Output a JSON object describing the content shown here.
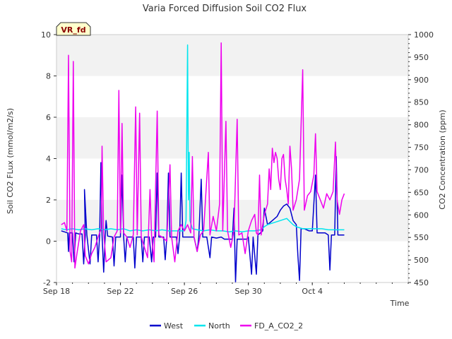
{
  "chart_data": {
    "type": "line",
    "title": "Varia Forced Diffusion Soil CO2 Flux",
    "site_badge": "VR_fd",
    "xlabel": "Time",
    "ylabel_left": "Soil CO2 FLux (mmol/m2/s)",
    "ylabel_right": "CO2 Concentration (ppm)",
    "x_range_days_from_sep18": [
      0,
      22
    ],
    "x_ticks": [
      {
        "label": "Sep 18",
        "day": 0
      },
      {
        "label": "Sep 22",
        "day": 4
      },
      {
        "label": "Sep 26",
        "day": 8
      },
      {
        "label": "Sep 30",
        "day": 12
      },
      {
        "label": "Oct 4",
        "day": 16
      }
    ],
    "ylim_left": [
      -2,
      10
    ],
    "yticks_left": [
      -2,
      0,
      2,
      4,
      6,
      8,
      10
    ],
    "ylim_right": [
      450,
      1000
    ],
    "yticks_right": [
      450,
      500,
      550,
      600,
      650,
      700,
      750,
      800,
      850,
      900,
      950,
      1000
    ],
    "grid": "horizontal bands",
    "legend_position": "bottom-center",
    "series": [
      {
        "name": "West",
        "color": "#0000cc",
        "axis": "left",
        "points": [
          [
            0.3,
            0.5
          ],
          [
            0.5,
            0.45
          ],
          [
            0.7,
            0.4
          ],
          [
            0.75,
            -0.5
          ],
          [
            0.8,
            0.4
          ],
          [
            1.0,
            0.4
          ],
          [
            1.1,
            -1.0
          ],
          [
            1.2,
            0.4
          ],
          [
            1.4,
            0.35
          ],
          [
            1.6,
            0.35
          ],
          [
            1.7,
            -1.1
          ],
          [
            1.8,
            0.3
          ],
          [
            1.75,
            2.5
          ],
          [
            1.9,
            0.3
          ],
          [
            2.1,
            -1.1
          ],
          [
            2.2,
            0.3
          ],
          [
            2.5,
            0.3
          ],
          [
            2.6,
            -1.0
          ],
          [
            2.7,
            0.3
          ],
          [
            2.78,
            3.8
          ],
          [
            2.85,
            0.3
          ],
          [
            2.95,
            -1.5
          ],
          [
            3.05,
            0.3
          ],
          [
            3.1,
            1.0
          ],
          [
            3.2,
            0.25
          ],
          [
            3.5,
            0.2
          ],
          [
            3.6,
            -1.2
          ],
          [
            3.7,
            0.2
          ],
          [
            4.0,
            0.2
          ],
          [
            4.1,
            3.2
          ],
          [
            4.2,
            0.2
          ],
          [
            4.3,
            -1.0
          ],
          [
            4.4,
            0.2
          ],
          [
            4.8,
            0.2
          ],
          [
            4.9,
            -1.3
          ],
          [
            5.0,
            0.2
          ],
          [
            5.3,
            0.2
          ],
          [
            5.4,
            -1.0
          ],
          [
            5.5,
            0.2
          ],
          [
            5.8,
            0.2
          ],
          [
            5.95,
            -1.0
          ],
          [
            6.05,
            0.2
          ],
          [
            6.2,
            0.2
          ],
          [
            6.3,
            3.3
          ],
          [
            6.4,
            0.2
          ],
          [
            6.5,
            0.2
          ],
          [
            6.7,
            0.2
          ],
          [
            6.8,
            -0.9
          ],
          [
            6.9,
            0.2
          ],
          [
            7.0,
            3.3
          ],
          [
            7.1,
            0.2
          ],
          [
            7.3,
            0.2
          ],
          [
            7.5,
            0.2
          ],
          [
            7.6,
            -0.6
          ],
          [
            7.7,
            0.2
          ],
          [
            7.8,
            3.3
          ],
          [
            7.9,
            0.2
          ],
          [
            8.1,
            0.2
          ],
          [
            8.4,
            0.2
          ],
          [
            8.6,
            0.2
          ],
          [
            8.8,
            -0.5
          ],
          [
            8.9,
            0.2
          ],
          [
            9.05,
            3.0
          ],
          [
            9.15,
            0.2
          ],
          [
            9.4,
            0.2
          ],
          [
            9.6,
            -0.8
          ],
          [
            9.7,
            0.2
          ],
          [
            10.0,
            0.15
          ],
          [
            10.3,
            0.2
          ],
          [
            10.5,
            0.1
          ],
          [
            10.7,
            0.1
          ],
          [
            11.0,
            0.1
          ],
          [
            11.1,
            1.6
          ],
          [
            11.2,
            -2.0
          ],
          [
            11.3,
            0.1
          ],
          [
            11.6,
            0.1
          ],
          [
            11.9,
            0.1
          ],
          [
            12.0,
            0.2
          ],
          [
            12.2,
            -1.6
          ],
          [
            12.3,
            0.2
          ],
          [
            12.5,
            -1.6
          ],
          [
            12.6,
            0.3
          ],
          [
            12.9,
            0.5
          ],
          [
            13.0,
            1.6
          ],
          [
            13.2,
            0.8
          ],
          [
            13.5,
            1.0
          ],
          [
            13.8,
            1.2
          ],
          [
            14.0,
            1.5
          ],
          [
            14.2,
            1.7
          ],
          [
            14.4,
            1.8
          ],
          [
            14.6,
            1.6
          ],
          [
            14.8,
            1.0
          ],
          [
            15.0,
            0.8
          ],
          [
            15.1,
            -0.7
          ],
          [
            15.2,
            -1.9
          ],
          [
            15.3,
            0.6
          ],
          [
            15.5,
            0.6
          ],
          [
            15.8,
            0.5
          ],
          [
            16.0,
            0.5
          ],
          [
            16.2,
            3.2
          ],
          [
            16.3,
            0.4
          ],
          [
            16.5,
            0.4
          ],
          [
            16.8,
            0.4
          ],
          [
            17.0,
            0.3
          ],
          [
            17.1,
            -1.4
          ],
          [
            17.2,
            0.3
          ],
          [
            17.4,
            0.3
          ],
          [
            17.5,
            4.1
          ],
          [
            17.6,
            0.3
          ],
          [
            17.8,
            0.3
          ],
          [
            18.0,
            0.3
          ]
        ]
      },
      {
        "name": "North",
        "color": "#00e5ee",
        "axis": "left",
        "points": [
          [
            0.3,
            0.6
          ],
          [
            0.6,
            0.55
          ],
          [
            1.0,
            0.6
          ],
          [
            1.4,
            0.55
          ],
          [
            1.8,
            0.6
          ],
          [
            2.2,
            0.55
          ],
          [
            2.6,
            0.6
          ],
          [
            3.0,
            0.55
          ],
          [
            3.4,
            0.6
          ],
          [
            3.8,
            0.55
          ],
          [
            4.2,
            0.6
          ],
          [
            4.6,
            0.5
          ],
          [
            5.0,
            0.55
          ],
          [
            5.4,
            0.5
          ],
          [
            5.8,
            0.55
          ],
          [
            6.2,
            0.5
          ],
          [
            6.6,
            0.55
          ],
          [
            7.0,
            0.5
          ],
          [
            7.4,
            0.5
          ],
          [
            7.8,
            0.5
          ],
          [
            8.0,
            0.5
          ],
          [
            8.1,
            1.0
          ],
          [
            8.2,
            9.5
          ],
          [
            8.25,
            2.0
          ],
          [
            8.3,
            4.3
          ],
          [
            8.35,
            1.0
          ],
          [
            8.5,
            0.6
          ],
          [
            8.8,
            0.55
          ],
          [
            9.2,
            0.5
          ],
          [
            9.6,
            0.55
          ],
          [
            10.0,
            0.5
          ],
          [
            10.4,
            0.5
          ],
          [
            10.8,
            0.45
          ],
          [
            11.2,
            0.5
          ],
          [
            11.6,
            0.45
          ],
          [
            12.0,
            0.5
          ],
          [
            12.4,
            0.5
          ],
          [
            12.8,
            0.55
          ],
          [
            13.0,
            0.7
          ],
          [
            13.2,
            0.8
          ],
          [
            13.6,
            0.9
          ],
          [
            14.0,
            1.0
          ],
          [
            14.4,
            1.1
          ],
          [
            14.8,
            0.8
          ],
          [
            15.0,
            0.7
          ],
          [
            15.4,
            0.6
          ],
          [
            15.8,
            0.6
          ],
          [
            16.2,
            0.6
          ],
          [
            16.6,
            0.6
          ],
          [
            17.0,
            0.55
          ],
          [
            17.4,
            0.55
          ],
          [
            17.8,
            0.55
          ],
          [
            18.0,
            0.55
          ]
        ]
      },
      {
        "name": "FD_A_CO2_2",
        "color": "#ee00ee",
        "axis": "left",
        "points": [
          [
            0.3,
            0.8
          ],
          [
            0.5,
            0.9
          ],
          [
            0.65,
            0.5
          ],
          [
            0.75,
            9.0
          ],
          [
            0.85,
            -0.5
          ],
          [
            0.95,
            -1.0
          ],
          [
            1.05,
            8.7
          ],
          [
            1.15,
            -1.3
          ],
          [
            1.3,
            -0.5
          ],
          [
            1.5,
            0.5
          ],
          [
            1.7,
            0.8
          ],
          [
            1.8,
            -0.7
          ],
          [
            2.0,
            -1.1
          ],
          [
            2.2,
            -0.6
          ],
          [
            2.4,
            -0.3
          ],
          [
            2.6,
            0.2
          ],
          [
            2.8,
            0.6
          ],
          [
            2.85,
            4.6
          ],
          [
            2.95,
            0.4
          ],
          [
            3.1,
            -1.0
          ],
          [
            3.4,
            -0.8
          ],
          [
            3.6,
            0.2
          ],
          [
            3.8,
            0.5
          ],
          [
            3.9,
            7.3
          ],
          [
            4.0,
            0.4
          ],
          [
            4.1,
            5.7
          ],
          [
            4.2,
            0.4
          ],
          [
            4.4,
            0.2
          ],
          [
            4.6,
            -0.3
          ],
          [
            4.8,
            0.3
          ],
          [
            4.95,
            6.5
          ],
          [
            5.05,
            0.3
          ],
          [
            5.2,
            6.2
          ],
          [
            5.3,
            0.2
          ],
          [
            5.5,
            -0.3
          ],
          [
            5.7,
            -0.8
          ],
          [
            5.85,
            2.5
          ],
          [
            5.95,
            0.2
          ],
          [
            6.1,
            -1.0
          ],
          [
            6.3,
            6.3
          ],
          [
            6.4,
            0.3
          ],
          [
            6.6,
            0.2
          ],
          [
            6.9,
            0.0
          ],
          [
            7.1,
            3.7
          ],
          [
            7.2,
            0.2
          ],
          [
            7.4,
            -1.0
          ],
          [
            7.6,
            0.5
          ],
          [
            7.8,
            0.8
          ],
          [
            8.0,
            0.5
          ],
          [
            8.2,
            0.8
          ],
          [
            8.4,
            0.4
          ],
          [
            8.5,
            4.1
          ],
          [
            8.6,
            0.2
          ],
          [
            8.8,
            -0.5
          ],
          [
            9.0,
            0.3
          ],
          [
            9.2,
            0.5
          ],
          [
            9.5,
            4.3
          ],
          [
            9.6,
            0.3
          ],
          [
            9.8,
            1.2
          ],
          [
            10.0,
            0.5
          ],
          [
            10.2,
            1.8
          ],
          [
            10.3,
            9.6
          ],
          [
            10.4,
            0.5
          ],
          [
            10.6,
            5.8
          ],
          [
            10.7,
            0.5
          ],
          [
            10.9,
            -0.3
          ],
          [
            11.1,
            0.5
          ],
          [
            11.3,
            5.9
          ],
          [
            11.4,
            0.3
          ],
          [
            11.6,
            0.4
          ],
          [
            11.8,
            -0.6
          ],
          [
            12.0,
            0.5
          ],
          [
            12.2,
            1.0
          ],
          [
            12.4,
            1.3
          ],
          [
            12.5,
            0.4
          ],
          [
            12.6,
            0.3
          ],
          [
            12.7,
            3.2
          ],
          [
            12.8,
            0.3
          ],
          [
            13.0,
            1.3
          ],
          [
            13.2,
            1.8
          ],
          [
            13.3,
            3.5
          ],
          [
            13.4,
            2.5
          ],
          [
            13.5,
            4.5
          ],
          [
            13.6,
            3.8
          ],
          [
            13.7,
            4.3
          ],
          [
            13.8,
            4.0
          ],
          [
            13.9,
            3.0
          ],
          [
            14.0,
            2.5
          ],
          [
            14.1,
            4.0
          ],
          [
            14.2,
            4.2
          ],
          [
            14.3,
            3.0
          ],
          [
            14.4,
            2.5
          ],
          [
            14.5,
            1.8
          ],
          [
            14.6,
            4.6
          ],
          [
            14.7,
            3.5
          ],
          [
            14.8,
            1.5
          ],
          [
            15.0,
            2.0
          ],
          [
            15.2,
            3.0
          ],
          [
            15.4,
            8.3
          ],
          [
            15.5,
            1.5
          ],
          [
            15.7,
            2.2
          ],
          [
            15.9,
            2.4
          ],
          [
            16.1,
            3.2
          ],
          [
            16.2,
            5.2
          ],
          [
            16.3,
            2.4
          ],
          [
            16.5,
            2.0
          ],
          [
            16.7,
            1.6
          ],
          [
            16.9,
            2.3
          ],
          [
            17.1,
            2.0
          ],
          [
            17.3,
            2.4
          ],
          [
            17.45,
            4.8
          ],
          [
            17.55,
            2.0
          ],
          [
            17.7,
            1.3
          ],
          [
            17.85,
            2.0
          ],
          [
            18.0,
            2.3
          ]
        ]
      }
    ]
  }
}
